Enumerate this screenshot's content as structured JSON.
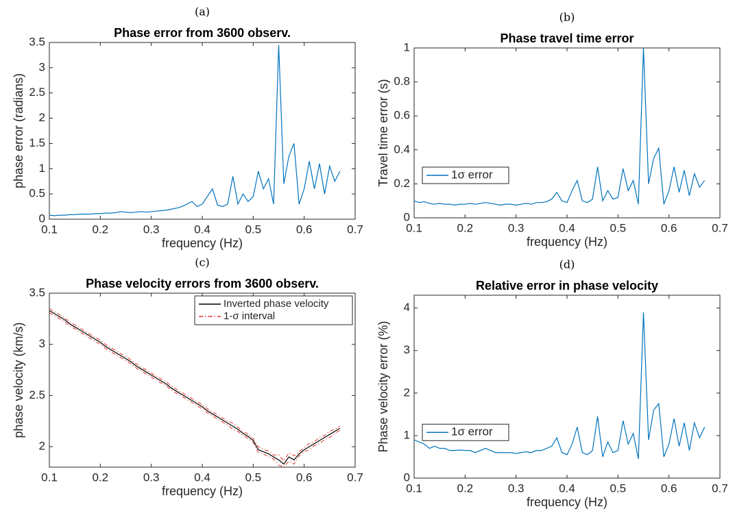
{
  "chart_data": [
    {
      "type": "line",
      "panel_label": "(a)",
      "title": "Phase error from 3600 observ.",
      "xlabel": "frequency (Hz)",
      "ylabel": "phase error (radians)",
      "x": [
        0.1,
        0.11,
        0.12,
        0.13,
        0.14,
        0.15,
        0.16,
        0.17,
        0.18,
        0.19,
        0.2,
        0.21,
        0.22,
        0.23,
        0.24,
        0.25,
        0.26,
        0.27,
        0.28,
        0.29,
        0.3,
        0.31,
        0.32,
        0.33,
        0.34,
        0.35,
        0.36,
        0.37,
        0.38,
        0.39,
        0.4,
        0.41,
        0.42,
        0.43,
        0.44,
        0.45,
        0.46,
        0.47,
        0.48,
        0.49,
        0.5,
        0.51,
        0.52,
        0.53,
        0.54,
        0.55,
        0.56,
        0.57,
        0.58,
        0.59,
        0.6,
        0.61,
        0.62,
        0.63,
        0.64,
        0.65,
        0.66,
        0.67
      ],
      "series": [
        {
          "color": "#0072bd",
          "values": [
            0.08,
            0.07,
            0.08,
            0.08,
            0.09,
            0.09,
            0.1,
            0.1,
            0.1,
            0.11,
            0.11,
            0.12,
            0.12,
            0.13,
            0.15,
            0.14,
            0.13,
            0.14,
            0.15,
            0.14,
            0.15,
            0.16,
            0.17,
            0.18,
            0.2,
            0.22,
            0.25,
            0.3,
            0.35,
            0.25,
            0.3,
            0.45,
            0.6,
            0.28,
            0.25,
            0.3,
            0.85,
            0.3,
            0.5,
            0.35,
            0.45,
            0.95,
            0.6,
            0.8,
            0.3,
            3.45,
            0.7,
            1.25,
            1.5,
            0.3,
            0.6,
            1.15,
            0.6,
            1.1,
            0.5,
            1.05,
            0.75,
            0.95
          ]
        }
      ],
      "xlim": [
        0.1,
        0.7
      ],
      "xticks": [
        0.1,
        0.2,
        0.3,
        0.4,
        0.5,
        0.6,
        0.7
      ],
      "ylim": [
        0,
        3.5
      ],
      "yticks": [
        0,
        0.5,
        1,
        1.5,
        2,
        2.5,
        3,
        3.5
      ]
    },
    {
      "type": "line",
      "panel_label": "(b)",
      "title": "Phase travel time error",
      "xlabel": "frequency (Hz)",
      "ylabel": "Travel time error (s)",
      "legend": "lower left",
      "x": [
        0.1,
        0.11,
        0.12,
        0.13,
        0.14,
        0.15,
        0.16,
        0.17,
        0.18,
        0.19,
        0.2,
        0.21,
        0.22,
        0.23,
        0.24,
        0.25,
        0.26,
        0.27,
        0.28,
        0.29,
        0.3,
        0.31,
        0.32,
        0.33,
        0.34,
        0.35,
        0.36,
        0.37,
        0.38,
        0.39,
        0.4,
        0.41,
        0.42,
        0.43,
        0.44,
        0.45,
        0.46,
        0.47,
        0.48,
        0.49,
        0.5,
        0.51,
        0.52,
        0.53,
        0.54,
        0.55,
        0.56,
        0.57,
        0.58,
        0.59,
        0.6,
        0.61,
        0.62,
        0.63,
        0.64,
        0.65,
        0.66,
        0.67
      ],
      "series": [
        {
          "name": "1σ error",
          "color": "#0072bd",
          "values": [
            0.1,
            0.09,
            0.095,
            0.085,
            0.08,
            0.085,
            0.08,
            0.08,
            0.075,
            0.08,
            0.08,
            0.085,
            0.08,
            0.085,
            0.09,
            0.085,
            0.08,
            0.075,
            0.08,
            0.08,
            0.075,
            0.08,
            0.085,
            0.08,
            0.09,
            0.09,
            0.095,
            0.11,
            0.15,
            0.1,
            0.09,
            0.16,
            0.22,
            0.1,
            0.09,
            0.11,
            0.3,
            0.1,
            0.16,
            0.11,
            0.12,
            0.29,
            0.16,
            0.22,
            0.08,
            1.0,
            0.2,
            0.35,
            0.41,
            0.08,
            0.16,
            0.3,
            0.15,
            0.28,
            0.13,
            0.26,
            0.18,
            0.22
          ]
        }
      ],
      "xlim": [
        0.1,
        0.7
      ],
      "xticks": [
        0.1,
        0.2,
        0.3,
        0.4,
        0.5,
        0.6,
        0.7
      ],
      "ylim": [
        0,
        1
      ],
      "yticks": [
        0,
        0.2,
        0.4,
        0.6,
        0.8,
        1
      ]
    },
    {
      "type": "line",
      "panel_label": "(c)",
      "title": "Phase velocity errors from 3600 observ.",
      "xlabel": "frequency (Hz)",
      "ylabel": "phase velocity (km/s)",
      "legend": "upper right",
      "x": [
        0.1,
        0.11,
        0.12,
        0.13,
        0.14,
        0.15,
        0.16,
        0.17,
        0.18,
        0.19,
        0.2,
        0.21,
        0.22,
        0.23,
        0.24,
        0.25,
        0.26,
        0.27,
        0.28,
        0.29,
        0.3,
        0.31,
        0.32,
        0.33,
        0.34,
        0.35,
        0.36,
        0.37,
        0.38,
        0.39,
        0.4,
        0.41,
        0.42,
        0.43,
        0.44,
        0.45,
        0.46,
        0.47,
        0.48,
        0.49,
        0.5,
        0.51,
        0.52,
        0.53,
        0.54,
        0.55,
        0.56,
        0.57,
        0.58,
        0.59,
        0.6,
        0.61,
        0.62,
        0.63,
        0.64,
        0.65,
        0.66,
        0.67
      ],
      "series": [
        {
          "name": "Inverted phase velocity",
          "color": "#000000",
          "values": [
            3.33,
            3.3,
            3.27,
            3.24,
            3.2,
            3.17,
            3.14,
            3.11,
            3.08,
            3.05,
            3.02,
            2.98,
            2.95,
            2.92,
            2.89,
            2.86,
            2.83,
            2.79,
            2.76,
            2.73,
            2.7,
            2.67,
            2.64,
            2.61,
            2.57,
            2.54,
            2.51,
            2.48,
            2.45,
            2.42,
            2.39,
            2.35,
            2.32,
            2.29,
            2.26,
            2.23,
            2.2,
            2.17,
            2.13,
            2.1,
            2.06,
            1.97,
            1.95,
            1.93,
            1.9,
            1.87,
            1.83,
            1.9,
            1.87,
            1.93,
            1.97,
            2.0,
            2.03,
            2.06,
            2.09,
            2.12,
            2.15,
            2.18
          ]
        },
        {
          "name": "1-σ interval",
          "color": "#e6332a",
          "style": "dashdot",
          "errors": [
            0.02,
            0.02,
            0.02,
            0.02,
            0.02,
            0.02,
            0.02,
            0.02,
            0.02,
            0.02,
            0.02,
            0.02,
            0.02,
            0.02,
            0.02,
            0.02,
            0.02,
            0.02,
            0.02,
            0.02,
            0.02,
            0.02,
            0.02,
            0.02,
            0.02,
            0.02,
            0.02,
            0.02,
            0.02,
            0.02,
            0.02,
            0.02,
            0.02,
            0.02,
            0.02,
            0.02,
            0.03,
            0.02,
            0.02,
            0.02,
            0.02,
            0.03,
            0.02,
            0.03,
            0.02,
            0.05,
            0.03,
            0.04,
            0.04,
            0.02,
            0.02,
            0.03,
            0.02,
            0.03,
            0.02,
            0.03,
            0.02,
            0.02
          ]
        }
      ],
      "xlim": [
        0.1,
        0.7
      ],
      "xticks": [
        0.1,
        0.2,
        0.3,
        0.4,
        0.5,
        0.6,
        0.7
      ],
      "ylim": [
        1.8,
        3.5
      ],
      "yticks": [
        2,
        2.5,
        3,
        3.5
      ]
    },
    {
      "type": "line",
      "panel_label": "(d)",
      "title": "Relative error in phase velocity",
      "xlabel": "frequency (Hz)",
      "ylabel": "Phase velocity error (%)",
      "legend": "lower left",
      "x": [
        0.1,
        0.11,
        0.12,
        0.13,
        0.14,
        0.15,
        0.16,
        0.17,
        0.18,
        0.19,
        0.2,
        0.21,
        0.22,
        0.23,
        0.24,
        0.25,
        0.26,
        0.27,
        0.28,
        0.29,
        0.3,
        0.31,
        0.32,
        0.33,
        0.34,
        0.35,
        0.36,
        0.37,
        0.38,
        0.39,
        0.4,
        0.41,
        0.42,
        0.43,
        0.44,
        0.45,
        0.46,
        0.47,
        0.48,
        0.49,
        0.5,
        0.51,
        0.52,
        0.53,
        0.54,
        0.55,
        0.56,
        0.57,
        0.58,
        0.59,
        0.6,
        0.61,
        0.62,
        0.63,
        0.64,
        0.65,
        0.66,
        0.67
      ],
      "series": [
        {
          "name": "1σ error",
          "color": "#0072bd",
          "values": [
            0.9,
            0.85,
            0.8,
            0.7,
            0.75,
            0.7,
            0.7,
            0.65,
            0.65,
            0.66,
            0.65,
            0.65,
            0.6,
            0.65,
            0.7,
            0.65,
            0.6,
            0.6,
            0.6,
            0.6,
            0.58,
            0.6,
            0.62,
            0.6,
            0.65,
            0.65,
            0.7,
            0.75,
            0.95,
            0.6,
            0.55,
            0.8,
            1.2,
            0.6,
            0.55,
            0.65,
            1.45,
            0.5,
            0.85,
            0.6,
            0.65,
            1.35,
            0.8,
            1.05,
            0.45,
            3.9,
            0.9,
            1.6,
            1.75,
            0.5,
            0.8,
            1.4,
            0.75,
            1.3,
            0.65,
            1.3,
            0.95,
            1.2
          ]
        }
      ],
      "xlim": [
        0.1,
        0.7
      ],
      "xticks": [
        0.1,
        0.2,
        0.3,
        0.4,
        0.5,
        0.6,
        0.7
      ],
      "ylim": [
        0,
        4.3
      ],
      "yticks": [
        0,
        1,
        2,
        3,
        4
      ]
    }
  ]
}
